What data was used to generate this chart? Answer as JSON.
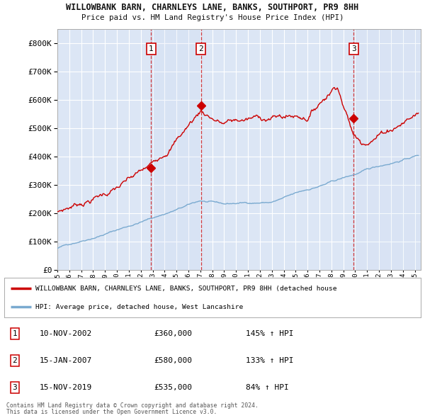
{
  "title_line1": "WILLOWBANK BARN, CHARNLEYS LANE, BANKS, SOUTHPORT, PR9 8HH",
  "title_line2": "Price paid vs. HM Land Registry's House Price Index (HPI)",
  "xlim_start": 1995.0,
  "xlim_end": 2025.5,
  "ylim_min": 0,
  "ylim_max": 850000,
  "yticks": [
    0,
    100000,
    200000,
    300000,
    400000,
    500000,
    600000,
    700000,
    800000
  ],
  "xticks": [
    1995,
    1996,
    1997,
    1998,
    1999,
    2000,
    2001,
    2002,
    2003,
    2004,
    2005,
    2006,
    2007,
    2008,
    2009,
    2010,
    2011,
    2012,
    2013,
    2014,
    2015,
    2016,
    2017,
    2018,
    2019,
    2020,
    2021,
    2022,
    2023,
    2024,
    2025
  ],
  "sale_dates": [
    2002.86,
    2007.04,
    2019.88
  ],
  "sale_prices": [
    360000,
    580000,
    535000
  ],
  "sale_labels": [
    "1",
    "2",
    "3"
  ],
  "legend_label_red": "WILLOWBANK BARN, CHARNLEYS LANE, BANKS, SOUTHPORT, PR9 8HH (detached house",
  "legend_label_blue": "HPI: Average price, detached house, West Lancashire",
  "table_rows": [
    {
      "num": "1",
      "date": "10-NOV-2002",
      "price": "£360,000",
      "pct": "145% ↑ HPI"
    },
    {
      "num": "2",
      "date": "15-JAN-2007",
      "price": "£580,000",
      "pct": "133% ↑ HPI"
    },
    {
      "num": "3",
      "date": "15-NOV-2019",
      "price": "£535,000",
      "pct": "84% ↑ HPI"
    }
  ],
  "footnote1": "Contains HM Land Registry data © Crown copyright and database right 2024.",
  "footnote2": "This data is licensed under the Open Government Licence v3.0.",
  "plot_bg_color": "#dce6f5",
  "grid_color": "#ffffff",
  "red_line_color": "#cc0000",
  "blue_line_color": "#7aaad0"
}
